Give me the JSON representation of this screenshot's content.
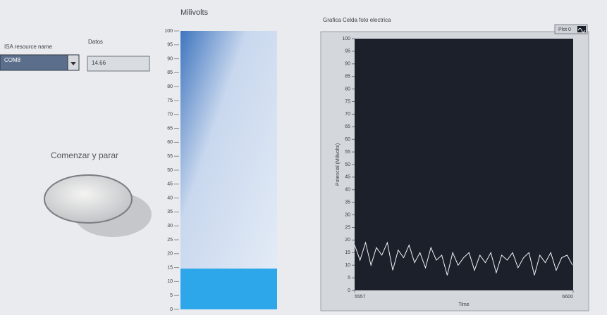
{
  "panel": {
    "visa_label": "ISA resource name",
    "visa_value": "COM8",
    "datos_label": "Datos",
    "datos_value": "14.66",
    "button_label": "Comenzar y parar"
  },
  "chart_data": [
    {
      "type": "tank",
      "title": "Milivolts",
      "values": [
        14.66
      ],
      "color": "#2ea6ea",
      "ylim": [
        0,
        100
      ],
      "yticks": [
        0,
        5,
        10,
        15,
        20,
        25,
        30,
        35,
        40,
        45,
        50,
        55,
        60,
        65,
        70,
        75,
        80,
        85,
        90,
        95,
        100
      ]
    },
    {
      "type": "line",
      "title": "Grafica Celda foto electrica",
      "x_label": "Time",
      "y_label": "Potencial (Milivolts)",
      "x": [
        5557,
        5583,
        5609,
        5635,
        5661,
        5687,
        5713,
        5739,
        5765,
        5791,
        5817,
        5843,
        5869,
        5895,
        5921,
        5947,
        5973,
        5999,
        6025,
        6051,
        6077,
        6103,
        6129,
        6155,
        6181,
        6207,
        6233,
        6259,
        6285,
        6311,
        6337,
        6363,
        6389,
        6415,
        6441,
        6467,
        6493,
        6519,
        6545,
        6571,
        6597
      ],
      "series": [
        {
          "name": "Plot 0",
          "color": "#f2f2f2",
          "values": [
            18,
            12,
            19,
            10,
            17,
            14,
            19,
            8,
            16,
            13,
            18,
            11,
            15,
            9,
            17,
            12,
            14,
            6,
            15,
            10,
            13,
            15,
            8,
            14,
            11,
            15,
            7,
            14,
            12,
            15,
            9,
            13,
            15,
            6,
            14,
            11,
            15,
            8,
            13,
            14,
            10
          ]
        }
      ],
      "xlim": [
        5557,
        6600
      ],
      "xticks": [
        5557,
        6600
      ],
      "ylim": [
        0,
        100
      ],
      "yticks": [
        0,
        5,
        10,
        15,
        20,
        25,
        30,
        35,
        40,
        45,
        50,
        55,
        60,
        65,
        70,
        75,
        80,
        85,
        90,
        95,
        100
      ]
    }
  ]
}
